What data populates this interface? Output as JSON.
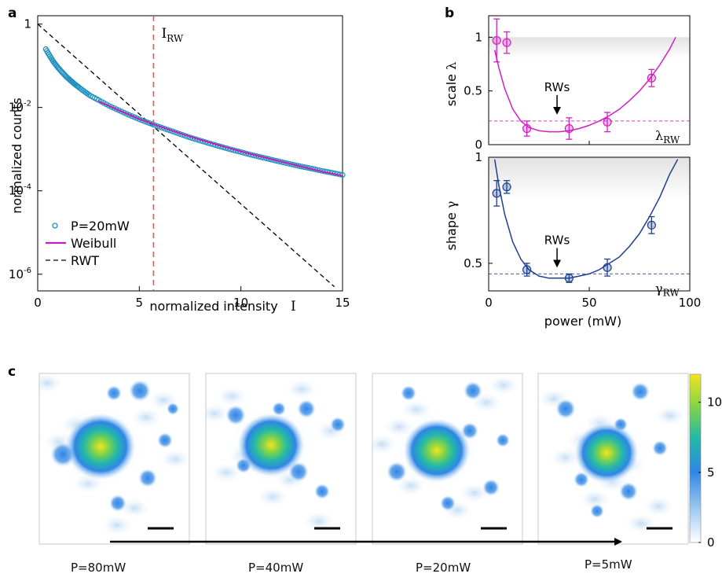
{
  "panels": {
    "a": "a",
    "b": "b",
    "c": "c"
  },
  "chart_data": [
    {
      "panel": "a",
      "type": "scatter",
      "xlabel": "normalized intensity",
      "xlabel_symbol": "I",
      "ylabel": "normalized counts",
      "xlim": [
        0,
        15
      ],
      "ylim_log10": [
        -6.4,
        0.2
      ],
      "yscale": "log",
      "xticks": [
        0,
        5,
        10,
        15
      ],
      "yticks": [
        {
          "value": 1,
          "base": "1",
          "exp": ""
        },
        {
          "value": 0.01,
          "base": "10",
          "exp": "-2"
        },
        {
          "value": 0.0001,
          "base": "10",
          "exp": "-4"
        },
        {
          "value": 1e-06,
          "base": "10",
          "exp": "-6"
        }
      ],
      "series": [
        {
          "name": "P=20mW",
          "kind": "markers",
          "color": "#1f8fbf",
          "x": [
            0.4,
            0.6,
            0.8,
            1.0,
            1.2,
            1.4,
            1.6,
            1.8,
            2.0,
            2.3,
            2.6,
            3.0,
            3.5,
            4.0,
            4.5,
            5.0,
            5.5,
            6.0,
            6.5,
            7.0,
            7.5,
            8.0,
            8.5,
            9.0,
            9.5,
            10.0,
            10.5,
            11.0,
            11.5,
            12.0,
            12.5,
            13.0,
            13.5,
            14.0,
            14.5,
            15.0
          ],
          "y": [
            0.25,
            0.17,
            0.12,
            0.09,
            0.07,
            0.055,
            0.045,
            0.037,
            0.031,
            0.024,
            0.019,
            0.015,
            0.011,
            0.0085,
            0.0066,
            0.0052,
            0.0042,
            0.0034,
            0.0028,
            0.0023,
            0.0019,
            0.0016,
            0.00135,
            0.00115,
            0.00098,
            0.00085,
            0.00073,
            0.00064,
            0.00056,
            0.00049,
            0.00043,
            0.00038,
            0.00034,
            0.0003,
            0.00027,
            0.00024
          ]
        },
        {
          "name": "Weibull",
          "kind": "line",
          "color": "#c21fb4",
          "x": [
            3,
            4,
            5,
            6,
            7,
            8,
            9,
            10,
            11,
            12,
            13,
            14,
            15
          ],
          "y": [
            0.014,
            0.0085,
            0.0053,
            0.0035,
            0.0024,
            0.00168,
            0.00121,
            0.00088,
            0.00066,
            0.0005,
            0.00038,
            0.00029,
            0.00023
          ]
        },
        {
          "name": "RWT",
          "kind": "dashed-line",
          "color": "#000000",
          "x": [
            0,
            14.6
          ],
          "y": [
            1,
            5e-07
          ]
        }
      ],
      "annotations": [
        {
          "kind": "vline",
          "x": 5.7,
          "color": "#e8534a",
          "label": "I",
          "label_sub": "RW"
        }
      ]
    },
    {
      "panel": "b-top",
      "type": "scatter",
      "ylabel": "scale",
      "ylabel_symbol": "λ",
      "xlim": [
        0,
        100
      ],
      "ylim": [
        0,
        1.2
      ],
      "yticks": [
        0,
        0.5,
        1
      ],
      "color": "#d11fbf",
      "series": [
        {
          "name": "",
          "x": [
            4,
            9,
            19,
            40,
            59,
            81
          ],
          "y": [
            0.97,
            0.95,
            0.15,
            0.15,
            0.21,
            0.62
          ],
          "err": [
            0.2,
            0.1,
            0.07,
            0.1,
            0.09,
            0.08
          ]
        },
        {
          "name": "",
          "kind": "fit",
          "x": [
            3,
            5,
            8,
            12,
            16,
            20,
            25,
            30,
            35,
            40,
            45,
            50,
            55,
            60,
            65,
            70,
            75,
            80,
            85,
            90,
            93
          ],
          "y": [
            0.88,
            0.72,
            0.52,
            0.33,
            0.22,
            0.16,
            0.13,
            0.12,
            0.12,
            0.13,
            0.15,
            0.18,
            0.22,
            0.27,
            0.33,
            0.41,
            0.5,
            0.61,
            0.74,
            0.89,
            1.0
          ]
        }
      ],
      "hline": {
        "y": 0.22,
        "label": "λ",
        "label_sub": "RW"
      },
      "arrow": {
        "label": "RWs",
        "x": 34
      }
    },
    {
      "panel": "b-bottom",
      "type": "scatter",
      "xlabel": "power (mW)",
      "ylabel": "shape",
      "ylabel_symbol": "γ",
      "xlim": [
        0,
        100
      ],
      "ylim": [
        0.37,
        1.0
      ],
      "xticks": [
        0,
        50,
        100
      ],
      "yticks": [
        0.5,
        1
      ],
      "color": "#1e3f8f",
      "series": [
        {
          "name": "",
          "x": [
            4,
            9,
            19,
            40,
            59,
            81
          ],
          "y": [
            0.83,
            0.86,
            0.47,
            0.43,
            0.48,
            0.68
          ],
          "err": [
            0.06,
            0.03,
            0.03,
            0.02,
            0.04,
            0.04
          ]
        },
        {
          "name": "",
          "kind": "fit",
          "x": [
            3,
            5,
            8,
            12,
            16,
            20,
            25,
            30,
            35,
            40,
            45,
            50,
            55,
            60,
            65,
            70,
            75,
            80,
            85,
            90,
            94
          ],
          "y": [
            0.99,
            0.87,
            0.73,
            0.6,
            0.52,
            0.47,
            0.44,
            0.43,
            0.43,
            0.43,
            0.44,
            0.45,
            0.47,
            0.5,
            0.53,
            0.58,
            0.64,
            0.72,
            0.81,
            0.92,
            0.99
          ]
        }
      ],
      "hline": {
        "y": 0.45,
        "label": "γ",
        "label_sub": "RW"
      },
      "arrow": {
        "label": "RWs",
        "x": 34
      }
    },
    {
      "panel": "c",
      "type": "heatmap",
      "images": [
        {
          "label": "P=80mW"
        },
        {
          "label": "P=40mW"
        },
        {
          "label": "P=20mW"
        },
        {
          "label": "P=5mW"
        }
      ],
      "colorbar": {
        "ticks": [
          0,
          5,
          10
        ],
        "range": [
          0,
          12
        ],
        "colors": [
          "#ffffff",
          "#9ec9f0",
          "#2f86e6",
          "#23b8a8",
          "#7ed34a",
          "#f3e41f"
        ]
      }
    }
  ]
}
